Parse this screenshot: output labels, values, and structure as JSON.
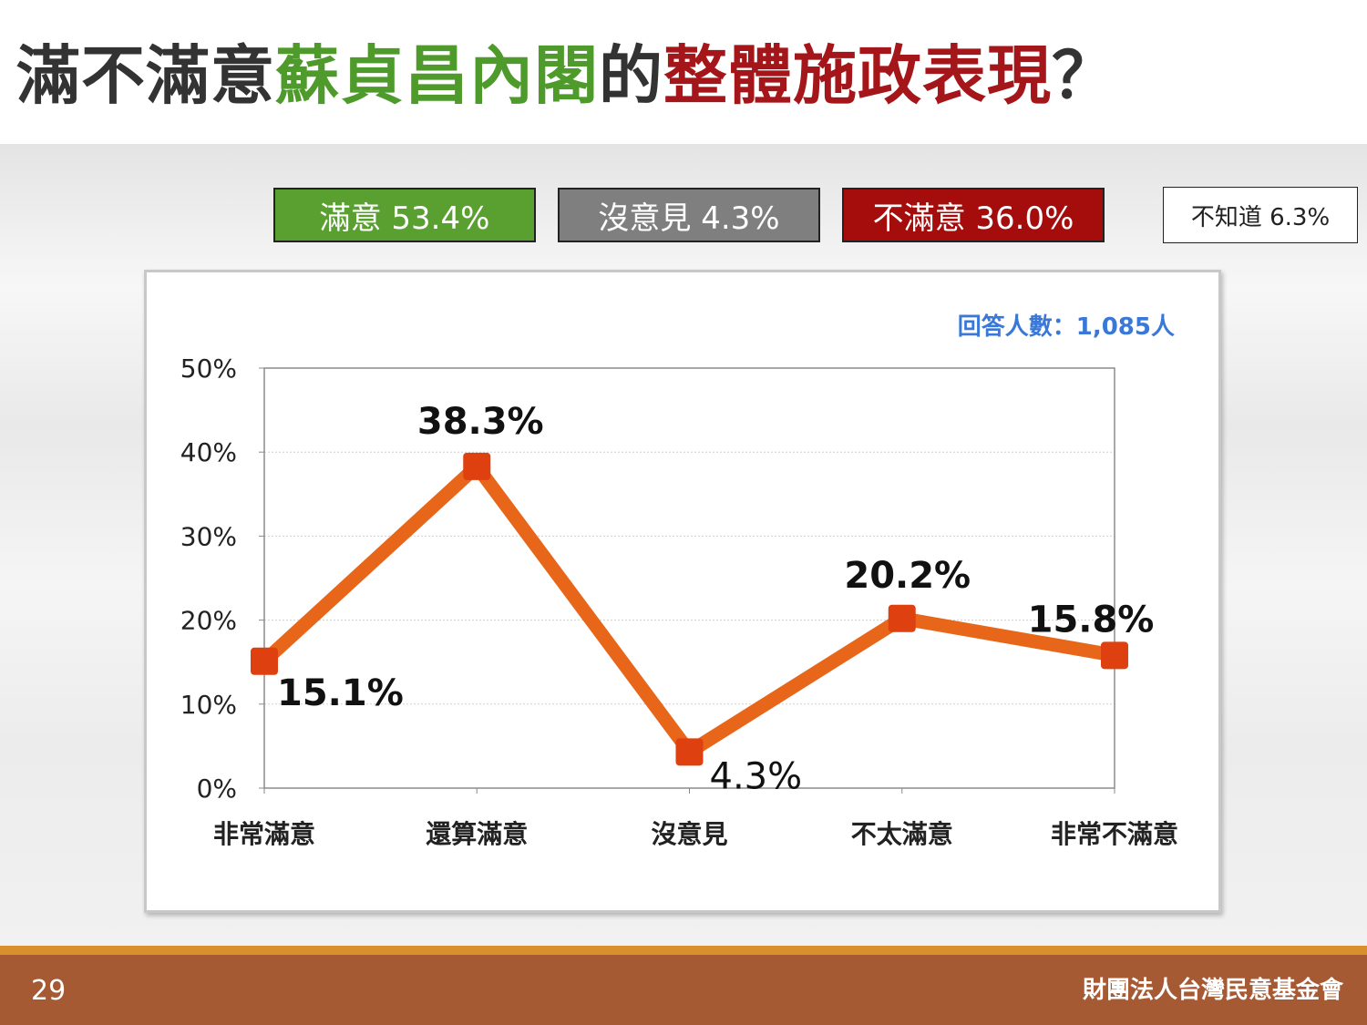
{
  "title": {
    "part1": "滿不滿意",
    "part2": "蘇貞昌內閣",
    "part3": "的",
    "part4": "整體施政表現",
    "part5": "？"
  },
  "summary": {
    "satisfied": "滿意 53.4%",
    "no_opinion": "沒意見 4.3%",
    "dissatisfied": "不滿意 36.0%",
    "unknown": "不知道 6.3%"
  },
  "respondents": "回答人數：1,085人",
  "footer": {
    "page_number": "29",
    "organization": "財團法人台灣民意基金會"
  },
  "colors": {
    "satisfied": "#59a030",
    "no_opinion": "#7f7f7f",
    "dissatisfied": "#a50d0d",
    "line": "#e8661a",
    "marker": "#de4010",
    "respondents": "#3a78d8"
  },
  "chart_data": {
    "type": "line",
    "categories": [
      "非常滿意",
      "還算滿意",
      "沒意見",
      "不太滿意",
      "非常不滿意"
    ],
    "values": [
      15.1,
      38.3,
      4.3,
      20.2,
      15.8
    ],
    "data_labels": [
      "15.1%",
      "38.3%",
      "4.3%",
      "20.2%",
      "15.8%"
    ],
    "yticks": [
      "0%",
      "10%",
      "20%",
      "30%",
      "40%",
      "50%"
    ],
    "ylim": [
      0,
      50
    ],
    "grid": true,
    "legend": "none"
  }
}
